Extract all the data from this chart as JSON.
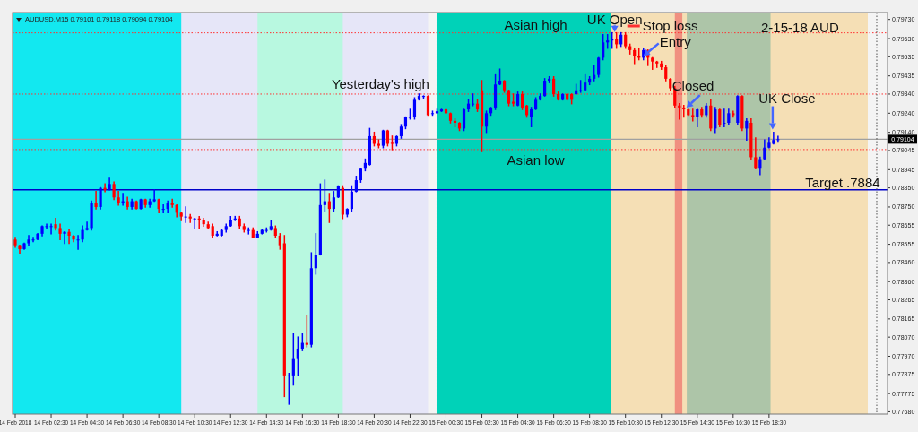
{
  "chart_data": {
    "type": "candlestick",
    "title": "AUDUSD,M15  0.79101 0.79118 0.79094 0.79104",
    "x": [
      "2018-02-14T00:30",
      "2018-02-14T00:45",
      "2018-02-14T01:00",
      "2018-02-14T01:15",
      "2018-02-14T01:30",
      "2018-02-14T01:45",
      "2018-02-14T02:00",
      "2018-02-14T02:15",
      "2018-02-14T02:30",
      "2018-02-14T02:45",
      "2018-02-14T03:00",
      "2018-02-14T03:15",
      "2018-02-14T03:30",
      "2018-02-14T03:45",
      "2018-02-14T04:00",
      "2018-02-14T04:15",
      "2018-02-14T04:30",
      "2018-02-14T04:45",
      "2018-02-14T05:00",
      "2018-02-14T05:15",
      "2018-02-14T05:30",
      "2018-02-14T05:45",
      "2018-02-14T06:00",
      "2018-02-14T06:15",
      "2018-02-14T06:30",
      "2018-02-14T06:45",
      "2018-02-14T07:00",
      "2018-02-14T07:15",
      "2018-02-14T07:30",
      "2018-02-14T07:45",
      "2018-02-14T08:00",
      "2018-02-14T08:15",
      "2018-02-14T08:30",
      "2018-02-14T08:45",
      "2018-02-14T09:00",
      "2018-02-14T09:15",
      "2018-02-14T09:30",
      "2018-02-14T09:45",
      "2018-02-14T10:00",
      "2018-02-14T10:15",
      "2018-02-14T10:30",
      "2018-02-14T10:45",
      "2018-02-14T11:00",
      "2018-02-14T11:15",
      "2018-02-14T11:30",
      "2018-02-14T11:45",
      "2018-02-14T12:00",
      "2018-02-14T12:15",
      "2018-02-14T12:30",
      "2018-02-14T12:45",
      "2018-02-14T13:00",
      "2018-02-14T13:15",
      "2018-02-14T13:30",
      "2018-02-14T13:45",
      "2018-02-14T14:00",
      "2018-02-14T14:15",
      "2018-02-14T14:30",
      "2018-02-14T14:45",
      "2018-02-14T15:00",
      "2018-02-14T15:15",
      "2018-02-14T15:30",
      "2018-02-14T15:45",
      "2018-02-14T16:00",
      "2018-02-14T16:15",
      "2018-02-14T16:30",
      "2018-02-14T16:45",
      "2018-02-14T17:00",
      "2018-02-14T17:15",
      "2018-02-14T17:30",
      "2018-02-14T17:45",
      "2018-02-14T18:00",
      "2018-02-14T18:15",
      "2018-02-14T18:30",
      "2018-02-14T18:45",
      "2018-02-14T19:00",
      "2018-02-14T19:15",
      "2018-02-14T19:30",
      "2018-02-14T19:45",
      "2018-02-14T20:00",
      "2018-02-14T20:15",
      "2018-02-14T20:30",
      "2018-02-14T20:45",
      "2018-02-14T21:00",
      "2018-02-14T21:15",
      "2018-02-14T21:30",
      "2018-02-14T21:45",
      "2018-02-14T22:00",
      "2018-02-14T22:15",
      "2018-02-14T22:30",
      "2018-02-14T22:45",
      "2018-02-14T23:00",
      "2018-02-14T23:15",
      "2018-02-14T23:30",
      "2018-02-14T23:45",
      "2018-02-15T00:00",
      "2018-02-15T00:15",
      "2018-02-15T00:30",
      "2018-02-15T00:45",
      "2018-02-15T01:00",
      "2018-02-15T01:15",
      "2018-02-15T01:30",
      "2018-02-15T01:45",
      "2018-02-15T02:00",
      "2018-02-15T02:15",
      "2018-02-15T02:30",
      "2018-02-15T02:45",
      "2018-02-15T03:00",
      "2018-02-15T03:15",
      "2018-02-15T03:30",
      "2018-02-15T03:45",
      "2018-02-15T04:00",
      "2018-02-15T04:15",
      "2018-02-15T04:30",
      "2018-02-15T04:45",
      "2018-02-15T05:00",
      "2018-02-15T05:15",
      "2018-02-15T05:30",
      "2018-02-15T05:45",
      "2018-02-15T06:00",
      "2018-02-15T06:15",
      "2018-02-15T06:30",
      "2018-02-15T06:45",
      "2018-02-15T07:00",
      "2018-02-15T07:15",
      "2018-02-15T07:30",
      "2018-02-15T07:45",
      "2018-02-15T08:00",
      "2018-02-15T08:15",
      "2018-02-15T08:30",
      "2018-02-15T08:45",
      "2018-02-15T09:00",
      "2018-02-15T09:15",
      "2018-02-15T09:30",
      "2018-02-15T09:45",
      "2018-02-15T10:00",
      "2018-02-15T10:15",
      "2018-02-15T10:30",
      "2018-02-15T10:45",
      "2018-02-15T11:00",
      "2018-02-15T11:15",
      "2018-02-15T11:30",
      "2018-02-15T11:45",
      "2018-02-15T12:00",
      "2018-02-15T12:15",
      "2018-02-15T12:30",
      "2018-02-15T12:45",
      "2018-02-15T13:00",
      "2018-02-15T13:15",
      "2018-02-15T13:30",
      "2018-02-15T13:45",
      "2018-02-15T14:00",
      "2018-02-15T14:15",
      "2018-02-15T14:30",
      "2018-02-15T14:45",
      "2018-02-15T15:00",
      "2018-02-15T15:15",
      "2018-02-15T15:30",
      "2018-02-15T15:45",
      "2018-02-15T16:00",
      "2018-02-15T16:15",
      "2018-02-15T16:30",
      "2018-02-15T16:45",
      "2018-02-15T17:00",
      "2018-02-15T17:15",
      "2018-02-15T17:30",
      "2018-02-15T17:45",
      "2018-02-15T18:00",
      "2018-02-15T18:15",
      "2018-02-15T18:30",
      "2018-02-15T18:45",
      "2018-02-15T19:00"
    ],
    "ohlc": [
      [
        0.7858,
        0.7859,
        0.7854,
        0.7855
      ],
      [
        0.7855,
        0.7855,
        0.7851,
        0.7853
      ],
      [
        0.7853,
        0.7856,
        0.7853,
        0.7856
      ],
      [
        0.7856,
        0.786,
        0.7855,
        0.7858
      ],
      [
        0.7858,
        0.7859,
        0.7857,
        0.7858
      ],
      [
        0.7858,
        0.7861,
        0.7858,
        0.7861
      ],
      [
        0.7861,
        0.7865,
        0.786,
        0.7865
      ],
      [
        0.7865,
        0.7866,
        0.7864,
        0.7865
      ],
      [
        0.7865,
        0.7866,
        0.7861,
        0.7865
      ],
      [
        0.7866,
        0.7869,
        0.7863,
        0.7864
      ],
      [
        0.7864,
        0.7866,
        0.7858,
        0.7861
      ],
      [
        0.7861,
        0.7862,
        0.7856,
        0.7862
      ],
      [
        0.7862,
        0.7863,
        0.7856,
        0.786
      ],
      [
        0.786,
        0.786,
        0.7857,
        0.7858
      ],
      [
        0.7858,
        0.786,
        0.7853,
        0.7858
      ],
      [
        0.7858,
        0.7865,
        0.7857,
        0.7863
      ],
      [
        0.7863,
        0.7867,
        0.7863,
        0.7864
      ],
      [
        0.7864,
        0.7878,
        0.7863,
        0.7877
      ],
      [
        0.7877,
        0.7883,
        0.7874,
        0.7875
      ],
      [
        0.7875,
        0.7885,
        0.7874,
        0.7885
      ],
      [
        0.7885,
        0.7887,
        0.7883,
        0.7884
      ],
      [
        0.7884,
        0.789,
        0.7884,
        0.7887
      ],
      [
        0.7887,
        0.7888,
        0.7879,
        0.788
      ],
      [
        0.788,
        0.7883,
        0.7876,
        0.7877
      ],
      [
        0.7877,
        0.7882,
        0.7876,
        0.7878
      ],
      [
        0.7878,
        0.788,
        0.7874,
        0.7875
      ],
      [
        0.7875,
        0.7879,
        0.7874,
        0.7878
      ],
      [
        0.7878,
        0.7878,
        0.7874,
        0.7874
      ],
      [
        0.7874,
        0.7879,
        0.7874,
        0.7879
      ],
      [
        0.7879,
        0.7879,
        0.7875,
        0.7876
      ],
      [
        0.7876,
        0.7879,
        0.7875,
        0.7878
      ],
      [
        0.7878,
        0.7884,
        0.7878,
        0.7879
      ],
      [
        0.7879,
        0.7879,
        0.7872,
        0.7874
      ],
      [
        0.7874,
        0.7876,
        0.7872,
        0.7874
      ],
      [
        0.7874,
        0.7878,
        0.7872,
        0.7877
      ],
      [
        0.7877,
        0.7879,
        0.7875,
        0.7876
      ],
      [
        0.7876,
        0.7876,
        0.787,
        0.7872
      ],
      [
        0.7872,
        0.7872,
        0.7868,
        0.787
      ],
      [
        0.787,
        0.7875,
        0.7867,
        0.787
      ],
      [
        0.787,
        0.7871,
        0.7867,
        0.7869
      ],
      [
        0.7869,
        0.7869,
        0.7864,
        0.7869
      ],
      [
        0.7869,
        0.787,
        0.7864,
        0.7868
      ],
      [
        0.7868,
        0.7869,
        0.7865,
        0.7866
      ],
      [
        0.7866,
        0.7867,
        0.7864,
        0.7864
      ],
      [
        0.7865,
        0.7866,
        0.7859,
        0.786
      ],
      [
        0.786,
        0.7862,
        0.786,
        0.7861
      ],
      [
        0.786,
        0.7863,
        0.786,
        0.7863
      ],
      [
        0.7863,
        0.7866,
        0.7862,
        0.7865
      ],
      [
        0.7865,
        0.787,
        0.7865,
        0.7868
      ],
      [
        0.7868,
        0.787,
        0.7868,
        0.7869
      ],
      [
        0.7869,
        0.787,
        0.7864,
        0.7865
      ],
      [
        0.7865,
        0.7866,
        0.7862,
        0.7863
      ],
      [
        0.7863,
        0.7864,
        0.7861,
        0.7863
      ],
      [
        0.7863,
        0.7864,
        0.7859,
        0.7859
      ],
      [
        0.7859,
        0.7862,
        0.7859,
        0.7861
      ],
      [
        0.7861,
        0.7863,
        0.7861,
        0.7863
      ],
      [
        0.7863,
        0.7864,
        0.7862,
        0.7863
      ],
      [
        0.7863,
        0.7868,
        0.7863,
        0.7865
      ],
      [
        0.7864,
        0.7865,
        0.7859,
        0.786
      ],
      [
        0.786,
        0.7861,
        0.7853,
        0.7855
      ],
      [
        0.7856,
        0.786,
        0.7776,
        0.7787
      ],
      [
        0.7787,
        0.7788,
        0.7772,
        0.7787
      ],
      [
        0.7787,
        0.7809,
        0.7782,
        0.7796
      ],
      [
        0.7796,
        0.7807,
        0.7787,
        0.7801
      ],
      [
        0.7801,
        0.7809,
        0.78,
        0.7804
      ],
      [
        0.7804,
        0.7818,
        0.7802,
        0.7803
      ],
      [
        0.7803,
        0.7851,
        0.7802,
        0.7843
      ],
      [
        0.7843,
        0.7861,
        0.784,
        0.785
      ],
      [
        0.785,
        0.7887,
        0.785,
        0.7876
      ],
      [
        0.7876,
        0.7889,
        0.7873,
        0.7878
      ],
      [
        0.7878,
        0.7882,
        0.7867,
        0.7874
      ],
      [
        0.7874,
        0.7883,
        0.7873,
        0.788
      ],
      [
        0.788,
        0.7886,
        0.788,
        0.7886
      ],
      [
        0.7885,
        0.7886,
        0.7869,
        0.7871
      ],
      [
        0.7871,
        0.7874,
        0.787,
        0.7874
      ],
      [
        0.7874,
        0.7886,
        0.7873,
        0.7883
      ],
      [
        0.7883,
        0.7891,
        0.7883,
        0.7889
      ],
      [
        0.7889,
        0.7895,
        0.7888,
        0.7895
      ],
      [
        0.7895,
        0.79,
        0.7894,
        0.7898
      ],
      [
        0.7897,
        0.7916,
        0.7897,
        0.7912
      ],
      [
        0.7912,
        0.7914,
        0.7907,
        0.7908
      ],
      [
        0.7908,
        0.791,
        0.7906,
        0.7907
      ],
      [
        0.7907,
        0.7915,
        0.7906,
        0.7915
      ],
      [
        0.7915,
        0.7915,
        0.7907,
        0.7908
      ],
      [
        0.7909,
        0.7912,
        0.7905,
        0.7908
      ],
      [
        0.7908,
        0.7912,
        0.7907,
        0.7912
      ],
      [
        0.7912,
        0.7918,
        0.7911,
        0.7917
      ],
      [
        0.7917,
        0.7922,
        0.7916,
        0.7922
      ],
      [
        0.7922,
        0.7926,
        0.7921,
        0.7922
      ],
      [
        0.7922,
        0.7932,
        0.7921,
        0.7931
      ],
      [
        0.7931,
        0.7934,
        0.7931,
        0.7933
      ],
      [
        0.7933,
        0.7933,
        0.7932,
        0.7933
      ],
      [
        0.7933,
        0.7933,
        0.7923,
        0.7923
      ],
      [
        0.7924,
        0.7925,
        0.7923,
        0.7924
      ],
      [
        0.7924,
        0.7926,
        0.7924,
        0.7925
      ],
      [
        0.7925,
        0.7926,
        0.7925,
        0.7926
      ],
      [
        0.7926,
        0.7926,
        0.7924,
        0.7924
      ],
      [
        0.7924,
        0.7924,
        0.7919,
        0.792
      ],
      [
        0.792,
        0.7921,
        0.7917,
        0.7919
      ],
      [
        0.7919,
        0.7919,
        0.7915,
        0.7916
      ],
      [
        0.7916,
        0.7926,
        0.7915,
        0.7926
      ],
      [
        0.7926,
        0.7931,
        0.7925,
        0.7929
      ],
      [
        0.7929,
        0.7934,
        0.7928,
        0.7929
      ],
      [
        0.7929,
        0.7931,
        0.7925,
        0.7926
      ],
      [
        0.7936,
        0.7941,
        0.7904,
        0.7917
      ],
      [
        0.7917,
        0.7925,
        0.7914,
        0.7924
      ],
      [
        0.7924,
        0.7927,
        0.7923,
        0.7927
      ],
      [
        0.7927,
        0.7944,
        0.7926,
        0.7939
      ],
      [
        0.7939,
        0.7947,
        0.7939,
        0.7941
      ],
      [
        0.7941,
        0.7941,
        0.7935,
        0.7936
      ],
      [
        0.7936,
        0.7936,
        0.7928,
        0.7929
      ],
      [
        0.793,
        0.7934,
        0.7928,
        0.7929
      ],
      [
        0.7928,
        0.7935,
        0.7928,
        0.7934
      ],
      [
        0.7934,
        0.7935,
        0.7926,
        0.7927
      ],
      [
        0.7928,
        0.7928,
        0.7922,
        0.7923
      ],
      [
        0.7922,
        0.7927,
        0.7917,
        0.7926
      ],
      [
        0.7926,
        0.7932,
        0.7926,
        0.7931
      ],
      [
        0.7931,
        0.7934,
        0.7931,
        0.7933
      ],
      [
        0.7933,
        0.7942,
        0.7933,
        0.7941
      ],
      [
        0.7941,
        0.7943,
        0.794,
        0.7942
      ],
      [
        0.7942,
        0.7943,
        0.7933,
        0.7934
      ],
      [
        0.7934,
        0.7935,
        0.7931,
        0.7931
      ],
      [
        0.7931,
        0.7934,
        0.7931,
        0.7934
      ],
      [
        0.7934,
        0.7934,
        0.7931,
        0.7931
      ],
      [
        0.7934,
        0.7934,
        0.7929,
        0.7931
      ],
      [
        0.7934,
        0.7939,
        0.7934,
        0.7936
      ],
      [
        0.7936,
        0.7941,
        0.7935,
        0.7936
      ],
      [
        0.7936,
        0.7944,
        0.7936,
        0.794
      ],
      [
        0.794,
        0.7943,
        0.7939,
        0.7942
      ],
      [
        0.7942,
        0.7949,
        0.7941,
        0.7944
      ],
      [
        0.7944,
        0.7953,
        0.7943,
        0.7953
      ],
      [
        0.7953,
        0.7965,
        0.7952,
        0.7961
      ],
      [
        0.7961,
        0.7965,
        0.7958,
        0.7962
      ],
      [
        0.7962,
        0.7966,
        0.7958,
        0.7963
      ],
      [
        0.7963,
        0.7966,
        0.7958,
        0.796
      ],
      [
        0.796,
        0.7966,
        0.7959,
        0.7965
      ],
      [
        0.7965,
        0.7966,
        0.7958,
        0.7959
      ],
      [
        0.7959,
        0.796,
        0.7955,
        0.7957
      ],
      [
        0.7957,
        0.7958,
        0.795,
        0.7954
      ],
      [
        0.7954,
        0.7958,
        0.7952,
        0.7953
      ],
      [
        0.7953,
        0.7958,
        0.7952,
        0.7957
      ],
      [
        0.7957,
        0.7957,
        0.7949,
        0.7953
      ],
      [
        0.7953,
        0.7953,
        0.7947,
        0.7951
      ],
      [
        0.7951,
        0.7951,
        0.7948,
        0.795
      ],
      [
        0.795,
        0.7951,
        0.7947,
        0.7948
      ],
      [
        0.7948,
        0.7949,
        0.7941,
        0.7942
      ],
      [
        0.7942,
        0.7942,
        0.7936,
        0.7937
      ],
      [
        0.7937,
        0.7938,
        0.7927,
        0.7928
      ],
      [
        0.7928,
        0.7929,
        0.7921,
        0.7927
      ],
      [
        0.7927,
        0.7928,
        0.7922,
        0.7926
      ],
      [
        0.7926,
        0.7926,
        0.7923,
        0.7923
      ],
      [
        0.7923,
        0.7926,
        0.792,
        0.7922
      ],
      [
        0.7922,
        0.7926,
        0.7917,
        0.7926
      ],
      [
        0.7926,
        0.7927,
        0.7922,
        0.7923
      ],
      [
        0.7923,
        0.7929,
        0.7922,
        0.7928
      ],
      [
        0.7928,
        0.7931,
        0.7915,
        0.7916
      ],
      [
        0.7916,
        0.7927,
        0.7914,
        0.7926
      ],
      [
        0.7926,
        0.7926,
        0.7917,
        0.7918
      ],
      [
        0.7919,
        0.7926,
        0.7917,
        0.7919
      ],
      [
        0.7919,
        0.7926,
        0.7918,
        0.7924
      ],
      [
        0.7924,
        0.7925,
        0.7922,
        0.7923
      ],
      [
        0.7919,
        0.7933,
        0.7918,
        0.7933
      ],
      [
        0.7933,
        0.7933,
        0.7915,
        0.7916
      ],
      [
        0.7916,
        0.7921,
        0.791,
        0.792
      ],
      [
        0.7919,
        0.7921,
        0.79,
        0.7901
      ],
      [
        0.7901,
        0.7911,
        0.7895,
        0.7895
      ],
      [
        0.7895,
        0.7901,
        0.7892,
        0.79
      ],
      [
        0.79,
        0.791,
        0.79,
        0.7906
      ],
      [
        0.7906,
        0.7911,
        0.7906,
        0.7909
      ],
      [
        0.7908,
        0.7914,
        0.7908,
        0.791
      ],
      [
        0.79101,
        0.79118,
        0.79094,
        0.79104
      ]
    ],
    "colors": [
      "#ff0000",
      "#ff0000",
      "#0000ff",
      "#0000ff",
      "#0000ff",
      "#0000ff",
      "#0000ff",
      "#0000ff",
      "#0000ff",
      "#ff0000",
      "#ff0000",
      "#0000ff",
      "#ff0000",
      "#ff0000",
      "#0000ff",
      "#0000ff",
      "#0000ff",
      "#0000ff",
      "#ff0000",
      "#0000ff",
      "#ff0000",
      "#0000ff",
      "#ff0000",
      "#ff0000",
      "#0000ff",
      "#ff0000",
      "#0000ff",
      "#ff0000",
      "#0000ff",
      "#ff0000",
      "#0000ff",
      "#0000ff",
      "#ff0000",
      "#0000ff",
      "#0000ff",
      "#ff0000",
      "#ff0000",
      "#ff0000",
      "#0000ff",
      "#ff0000",
      "#0000ff",
      "#ff0000",
      "#ff0000",
      "#ff0000",
      "#ff0000",
      "#0000ff",
      "#0000ff",
      "#0000ff",
      "#0000ff",
      "#0000ff",
      "#ff0000",
      "#ff0000",
      "#0000ff",
      "#ff0000",
      "#0000ff",
      "#0000ff",
      "#0000ff",
      "#0000ff",
      "#ff0000",
      "#ff0000",
      "#ff0000",
      "#0000ff",
      "#0000ff",
      "#0000ff",
      "#0000ff",
      "#ff0000",
      "#0000ff",
      "#0000ff",
      "#0000ff",
      "#0000ff",
      "#ff0000",
      "#0000ff",
      "#0000ff",
      "#ff0000",
      "#0000ff",
      "#0000ff",
      "#0000ff",
      "#0000ff",
      "#0000ff",
      "#0000ff",
      "#ff0000",
      "#ff0000",
      "#0000ff",
      "#ff0000",
      "#ff0000",
      "#0000ff",
      "#0000ff",
      "#0000ff",
      "#0000ff",
      "#0000ff",
      "#0000ff",
      "#0000ff",
      "#ff0000",
      "#0000ff",
      "#0000ff",
      "#0000ff",
      "#ff0000",
      "#ff0000",
      "#ff0000",
      "#ff0000",
      "#0000ff",
      "#0000ff",
      "#0000ff",
      "#ff0000",
      "#ff0000",
      "#0000ff",
      "#0000ff",
      "#0000ff",
      "#0000ff",
      "#ff0000",
      "#ff0000",
      "#ff0000",
      "#0000ff",
      "#ff0000",
      "#ff0000",
      "#0000ff",
      "#0000ff",
      "#0000ff",
      "#0000ff",
      "#0000ff",
      "#ff0000",
      "#ff0000",
      "#0000ff",
      "#ff0000",
      "#ff0000",
      "#0000ff",
      "#0000ff",
      "#0000ff",
      "#0000ff",
      "#0000ff",
      "#0000ff",
      "#0000ff",
      "#0000ff",
      "#0000ff",
      "#ff0000",
      "#0000ff",
      "#ff0000",
      "#ff0000",
      "#ff0000",
      "#ff0000",
      "#0000ff",
      "#ff0000",
      "#ff0000",
      "#ff0000",
      "#ff0000",
      "#ff0000",
      "#ff0000",
      "#ff0000",
      "#ff0000",
      "#ff0000",
      "#ff0000",
      "#ff0000",
      "#0000ff",
      "#ff0000",
      "#0000ff",
      "#ff0000",
      "#0000ff",
      "#ff0000",
      "#0000ff",
      "#0000ff",
      "#ff0000",
      "#0000ff",
      "#ff0000",
      "#0000ff",
      "#ff0000",
      "#ff0000",
      "#0000ff",
      "#0000ff",
      "#0000ff",
      "#0000ff",
      "#0000ff"
    ],
    "xlim": [
      "2018-02-14T00:21",
      "2018-02-16T01:06"
    ],
    "xticks": [
      {
        "value": "2018-02-14T00:30",
        "label": "14 Feb 2018"
      },
      {
        "value": "2018-02-14T02:30",
        "label": "14 Feb 02:30"
      },
      {
        "value": "2018-02-14T04:30",
        "label": "14 Feb 04:30"
      },
      {
        "value": "2018-02-14T06:30",
        "label": "14 Feb 06:30"
      },
      {
        "value": "2018-02-14T08:30",
        "label": "14 Feb 08:30"
      },
      {
        "value": "2018-02-14T10:30",
        "label": "14 Feb 10:30"
      },
      {
        "value": "2018-02-14T12:30",
        "label": "14 Feb 12:30"
      },
      {
        "value": "2018-02-14T14:30",
        "label": "14 Feb 14:30"
      },
      {
        "value": "2018-02-14T16:30",
        "label": "14 Feb 16:30"
      },
      {
        "value": "2018-02-14T18:30",
        "label": "14 Feb 18:30"
      },
      {
        "value": "2018-02-14T20:30",
        "label": "14 Feb 20:30"
      },
      {
        "value": "2018-02-14T22:30",
        "label": "14 Feb 22:30"
      },
      {
        "value": "2018-02-15T00:30",
        "label": "15 Feb 00:30"
      },
      {
        "value": "2018-02-15T02:30",
        "label": "15 Feb 02:30"
      },
      {
        "value": "2018-02-15T04:30",
        "label": "15 Feb 04:30"
      },
      {
        "value": "2018-02-15T06:30",
        "label": "15 Feb 06:30"
      },
      {
        "value": "2018-02-15T08:30",
        "label": "15 Feb 08:30"
      },
      {
        "value": "2018-02-15T10:30",
        "label": "15 Feb 10:30"
      },
      {
        "value": "2018-02-15T12:30",
        "label": "15 Feb 12:30"
      },
      {
        "value": "2018-02-15T14:30",
        "label": "15 Feb 14:30"
      },
      {
        "value": "2018-02-15T16:30",
        "label": "15 Feb 16:30"
      },
      {
        "value": "2018-02-15T18:30",
        "label": "15 Feb 18:30"
      }
    ],
    "ylim": [
      0.77668,
      0.79766
    ],
    "yticks": [
      {
        "value": 0.7973,
        "label": "0.79730"
      },
      {
        "value": 0.7963,
        "label": "0.79630"
      },
      {
        "value": 0.79535,
        "label": "0.79535"
      },
      {
        "value": 0.79435,
        "label": "0.79435"
      },
      {
        "value": 0.7934,
        "label": "0.79340"
      },
      {
        "value": 0.7924,
        "label": "0.79240"
      },
      {
        "value": 0.7914,
        "label": "0.79140"
      },
      {
        "value": 0.79045,
        "label": "0.79045"
      },
      {
        "value": 0.78945,
        "label": "0.78945"
      },
      {
        "value": 0.7885,
        "label": "0.78850"
      },
      {
        "value": 0.7875,
        "label": "0.78750"
      },
      {
        "value": 0.78655,
        "label": "0.78655"
      },
      {
        "value": 0.78555,
        "label": "0.78555"
      },
      {
        "value": 0.7846,
        "label": "0.78460"
      },
      {
        "value": 0.7836,
        "label": "0.78360"
      },
      {
        "value": 0.78265,
        "label": "0.78265"
      },
      {
        "value": 0.78165,
        "label": "0.78165"
      },
      {
        "value": 0.7807,
        "label": "0.78070"
      },
      {
        "value": 0.7797,
        "label": "0.77970"
      },
      {
        "value": 0.77875,
        "label": "0.77875"
      },
      {
        "value": 0.77775,
        "label": "0.77775"
      },
      {
        "value": 0.7768,
        "label": "0.77680"
      }
    ],
    "bands": [
      {
        "axis": "x",
        "from": "2018-02-14T00:21",
        "to": "2018-02-14T23:30",
        "color": "#e6e6f8"
      },
      {
        "axis": "x",
        "from": "2018-02-14T00:21",
        "to": "2018-02-14T09:45",
        "color": "#12e8f0"
      },
      {
        "axis": "x",
        "from": "2018-02-14T14:00",
        "to": "2018-02-14T18:45",
        "color": "#b8f8e0"
      },
      {
        "axis": "x",
        "from": "2018-02-15T00:00",
        "to": "2018-02-16T00:00",
        "color": "#f5dfb5"
      },
      {
        "axis": "x",
        "from": "2018-02-15T00:00",
        "to": "2018-02-15T09:40",
        "color": "#00d2b8"
      },
      {
        "axis": "x",
        "from": "2018-02-15T13:55",
        "to": "2018-02-15T18:35",
        "color": "#adc5a8"
      },
      {
        "axis": "x",
        "from": "2018-02-15T13:15",
        "to": "2018-02-15T13:40",
        "color": "#f09080"
      }
    ],
    "ref_lines": [
      {
        "axis": "y",
        "value": 0.7966,
        "color": "#ff3030",
        "line_style": "dotted"
      },
      {
        "axis": "y",
        "value": 0.7934,
        "color": "#ff3030",
        "line_style": "dotted"
      },
      {
        "axis": "y",
        "value": 0.7905,
        "color": "#ff3030",
        "line_style": "dotted"
      },
      {
        "axis": "y",
        "value": 0.7884,
        "color": "#0000c8",
        "line_style": "solid"
      },
      {
        "axis": "y",
        "value": 0.79104,
        "label": "0.79104",
        "color": "#a0a0a0",
        "line_style": "solid"
      },
      {
        "axis": "x",
        "value": "2018-02-15T00:00",
        "color": "#505050",
        "line_style": "dotted"
      },
      {
        "axis": "x",
        "value": "2018-02-16T00:30",
        "color": "#505050",
        "line_style": "dotted"
      }
    ],
    "annotations": [
      {
        "text": "Yesterday's high",
        "x": "2018-02-14T20:51",
        "y": 0.7934
      },
      {
        "text": "Asian high",
        "x": "2018-02-15T05:30",
        "y": 0.7966
      },
      {
        "text": "Asian low",
        "x": "2018-02-15T05:30",
        "y": 0.7905
      },
      {
        "text": "UK Open",
        "x": "2018-02-15T09:54",
        "y": 0.7966
      },
      "Stop loss",
      {
        "text": "Entry",
        "x": "2018-02-15T11:24",
        "y": 0.7953
      },
      {
        "text": "Closed",
        "x": "2018-02-15T13:48",
        "y": 0.7926
      },
      {
        "text": "UK Close",
        "x": "2018-02-15T18:36",
        "y": 0.7915
      },
      {
        "text": "Target  .7884",
        "x": "2018-02-15T22:36",
        "y": 0.7884
      },
      "2-15-18  AUD"
    ]
  }
}
